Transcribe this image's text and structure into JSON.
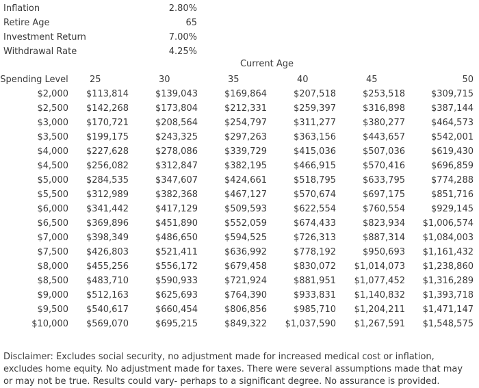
{
  "assumptions": [
    {
      "label": "Inflation",
      "value": "2.80%"
    },
    {
      "label": "Retire Age",
      "value": "65"
    },
    {
      "label": "Investment Return",
      "value": "7.00%"
    },
    {
      "label": "Withdrawal Rate",
      "value": "4.25%"
    }
  ],
  "chart_data": {
    "type": "table",
    "column_group_label": "Current Age",
    "row_header_label": "Spending Level",
    "columns": [
      "25",
      "30",
      "35",
      "40",
      "45",
      "50"
    ],
    "rows": [
      {
        "spending": "$2,000",
        "values": [
          "$113,814",
          "$139,043",
          "$169,864",
          "$207,518",
          "$253,518",
          "$309,715"
        ]
      },
      {
        "spending": "$2,500",
        "values": [
          "$142,268",
          "$173,804",
          "$212,331",
          "$259,397",
          "$316,898",
          "$387,144"
        ]
      },
      {
        "spending": "$3,000",
        "values": [
          "$170,721",
          "$208,564",
          "$254,797",
          "$311,277",
          "$380,277",
          "$464,573"
        ]
      },
      {
        "spending": "$3,500",
        "values": [
          "$199,175",
          "$243,325",
          "$297,263",
          "$363,156",
          "$443,657",
          "$542,001"
        ]
      },
      {
        "spending": "$4,000",
        "values": [
          "$227,628",
          "$278,086",
          "$339,729",
          "$415,036",
          "$507,036",
          "$619,430"
        ]
      },
      {
        "spending": "$4,500",
        "values": [
          "$256,082",
          "$312,847",
          "$382,195",
          "$466,915",
          "$570,416",
          "$696,859"
        ]
      },
      {
        "spending": "$5,000",
        "values": [
          "$284,535",
          "$347,607",
          "$424,661",
          "$518,795",
          "$633,795",
          "$774,288"
        ]
      },
      {
        "spending": "$5,500",
        "values": [
          "$312,989",
          "$382,368",
          "$467,127",
          "$570,674",
          "$697,175",
          "$851,716"
        ]
      },
      {
        "spending": "$6,000",
        "values": [
          "$341,442",
          "$417,129",
          "$509,593",
          "$622,554",
          "$760,554",
          "$929,145"
        ]
      },
      {
        "spending": "$6,500",
        "values": [
          "$369,896",
          "$451,890",
          "$552,059",
          "$674,433",
          "$823,934",
          "$1,006,574"
        ]
      },
      {
        "spending": "$7,000",
        "values": [
          "$398,349",
          "$486,650",
          "$594,525",
          "$726,313",
          "$887,314",
          "$1,084,003"
        ]
      },
      {
        "spending": "$7,500",
        "values": [
          "$426,803",
          "$521,411",
          "$636,992",
          "$778,192",
          "$950,693",
          "$1,161,432"
        ]
      },
      {
        "spending": "$8,000",
        "values": [
          "$455,256",
          "$556,172",
          "$679,458",
          "$830,072",
          "$1,014,073",
          "$1,238,860"
        ]
      },
      {
        "spending": "$8,500",
        "values": [
          "$483,710",
          "$590,933",
          "$721,924",
          "$881,951",
          "$1,077,452",
          "$1,316,289"
        ]
      },
      {
        "spending": "$9,000",
        "values": [
          "$512,163",
          "$625,693",
          "$764,390",
          "$933,831",
          "$1,140,832",
          "$1,393,718"
        ]
      },
      {
        "spending": "$9,500",
        "values": [
          "$540,617",
          "$660,454",
          "$806,856",
          "$985,710",
          "$1,204,211",
          "$1,471,147"
        ]
      },
      {
        "spending": "$10,000",
        "values": [
          "$569,070",
          "$695,215",
          "$849,322",
          "$1,037,590",
          "$1,267,591",
          "$1,548,575"
        ]
      }
    ]
  },
  "disclaimer": "Disclaimer: Excludes social security, no adjustment made for increased medical cost or inflation, excludes home equity. No adjustment made for taxes. There were several assumptions made that may or may not be true. Results could vary- perhaps to a significant degree. No assurance is provided."
}
